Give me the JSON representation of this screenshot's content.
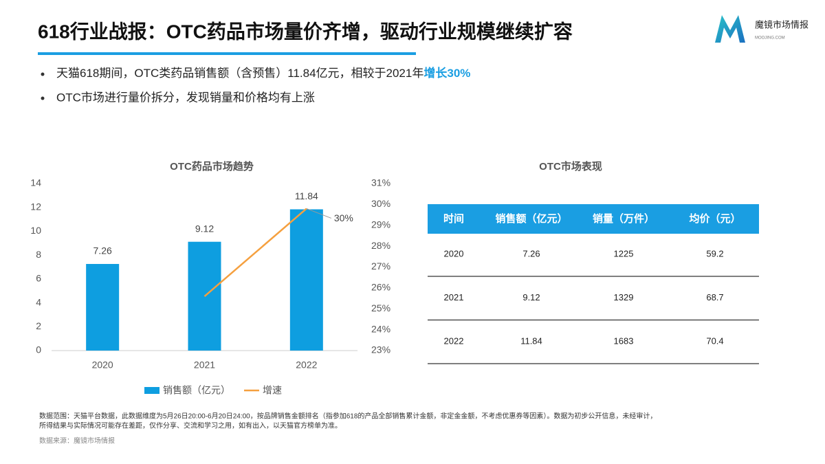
{
  "header": {
    "title": "618行业战报：OTC药品市场量价齐增，驱动行业规模继续扩容",
    "logo": "魔镜市场情报",
    "logo_sub": "MOOJING.COM"
  },
  "bullets": [
    {
      "text": "天猫618期间，OTC类药品销售额（含预售）11.84亿元，相较于2021年",
      "highlight": "增长30%"
    },
    {
      "text": "OTC市场进行量价拆分，发现销量和价格均有上涨"
    }
  ],
  "chart_data": {
    "type": "bar",
    "title": "OTC药品市场趋势",
    "categories": [
      "2020",
      "2021",
      "2022"
    ],
    "series": [
      {
        "name": "销售额（亿元）",
        "type": "bar",
        "color": "#0e9ee0",
        "values": [
          7.26,
          9.12,
          11.84
        ]
      },
      {
        "name": "增速",
        "type": "line",
        "axis": "y2",
        "color": "#f5a03f",
        "values": [
          null,
          25.6,
          29.8
        ],
        "value_labels": [
          null,
          null,
          "30%"
        ]
      }
    ],
    "ylim": [
      0,
      14
    ],
    "yticks": [
      0,
      2,
      4,
      6,
      8,
      10,
      12,
      14
    ],
    "y2lim": [
      23,
      31
    ],
    "y2ticks": [
      {
        "value": 23,
        "label": "23%"
      },
      {
        "value": 24,
        "label": "24%"
      },
      {
        "value": 25,
        "label": "25%"
      },
      {
        "value": 26,
        "label": "26%"
      },
      {
        "value": 27,
        "label": "27%"
      },
      {
        "value": 28,
        "label": "28%"
      },
      {
        "value": 29,
        "label": "29%"
      },
      {
        "value": 30,
        "label": "30%"
      },
      {
        "value": 31,
        "label": "31%"
      }
    ],
    "grid": false,
    "legend": "bottom"
  },
  "table": {
    "title": "OTC市场表现",
    "header_color": "#1a9ee2",
    "columns": [
      "时间",
      "销售额（亿元）",
      "销量（万件）",
      "均价（元）"
    ],
    "rows": [
      [
        "2020",
        7.26,
        1225,
        59.2
      ],
      [
        "2021",
        9.12,
        1329,
        68.7
      ],
      [
        "2022",
        11.84,
        1683,
        70.4
      ]
    ]
  },
  "footnote": {
    "lines": [
      "数据范围：天猫平台数据，此数据维度为5月26日20:00-6月20日24:00，按品牌销售金额排名（指参加618的产品全部销售累计金额，非定金金额，不考虑优惠券等因素）。数据为初步公开信息，未经审计，",
      "所得结果与实际情况可能存在差距，仅作分享、交流和学习之用，如有出入，以天猫官方榜单为准。"
    ],
    "source": "数据来源：魔镜市场情报"
  }
}
